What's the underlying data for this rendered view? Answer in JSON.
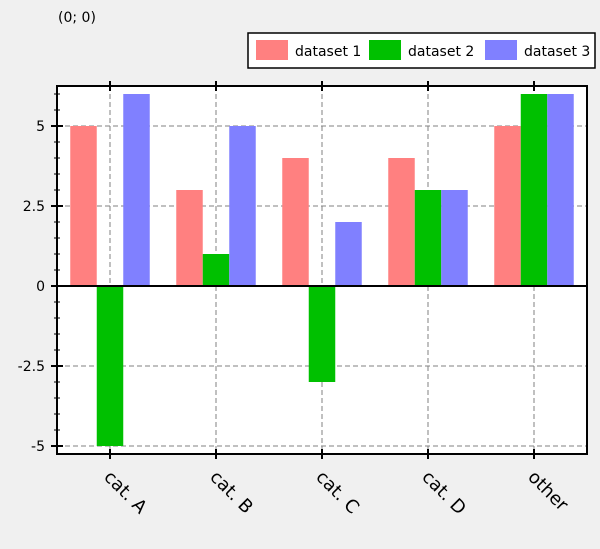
{
  "coordinate_readout": "(0; 0)",
  "chart_data": {
    "type": "bar",
    "categories": [
      "cat. A",
      "cat. B",
      "cat. C",
      "cat. D",
      "other"
    ],
    "series": [
      {
        "name": "dataset 1",
        "color": "#ff8080",
        "values": [
          5,
          3,
          4,
          4,
          5
        ]
      },
      {
        "name": "dataset 2",
        "color": "#00c000",
        "values": [
          -5,
          1,
          -3,
          3,
          6
        ]
      },
      {
        "name": "dataset 3",
        "color": "#8080ff",
        "values": [
          6,
          5,
          2,
          3,
          6
        ]
      }
    ],
    "ylim": [
      -5.25,
      6.25
    ],
    "yticks": [
      -5,
      -2.5,
      0,
      2.5,
      5
    ],
    "ytick_labels": [
      "-5",
      "-2.5",
      "0",
      "2.5",
      "5"
    ],
    "grid": true,
    "legend_position": "top-right",
    "title": "",
    "xlabel": "",
    "ylabel": ""
  }
}
